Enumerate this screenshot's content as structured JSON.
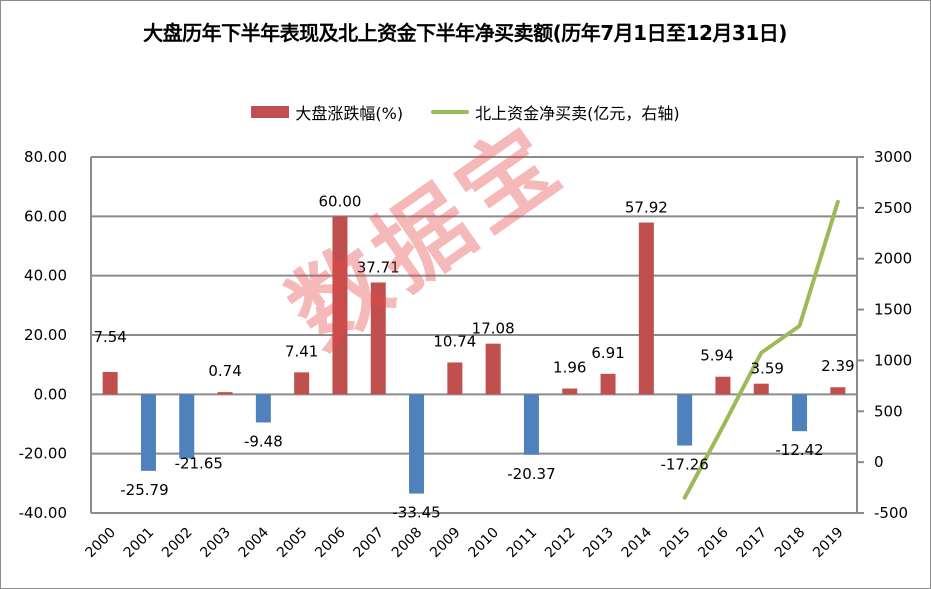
{
  "title": "大盘历年下半年表现及北上资金下半年净买卖额(历年7月1日至12月31日)",
  "watermark": "数据宝",
  "colors": {
    "positive_bar": "#C0504D",
    "negative_bar": "#4F81BD",
    "line": "#9BBB59",
    "grid": "#8c8c8c"
  },
  "legend": {
    "bar_label": "大盘涨跌幅(%)",
    "line_label": "北上资金净买卖(亿元，右轴)"
  },
  "chart_data": {
    "type": "bar+line",
    "title": "大盘历年下半年表现及北上资金下半年净买卖额(历年7月1日至12月31日)",
    "categories": [
      "2000",
      "2001",
      "2002",
      "2003",
      "2004",
      "2005",
      "2006",
      "2007",
      "2008",
      "2009",
      "2010",
      "2011",
      "2012",
      "2013",
      "2014",
      "2015",
      "2016",
      "2017",
      "2018",
      "2019"
    ],
    "series": [
      {
        "name": "大盘涨跌幅(%)",
        "type": "bar",
        "axis": "left",
        "values": [
          7.54,
          -25.79,
          -21.65,
          0.74,
          -9.48,
          7.41,
          60.0,
          37.71,
          -33.45,
          10.74,
          17.08,
          -20.37,
          1.96,
          6.91,
          57.92,
          -17.26,
          5.94,
          3.59,
          -12.42,
          2.39
        ],
        "labels": [
          "7.54",
          "-25.79",
          "-21.65",
          "0.74",
          "-9.48",
          "7.41",
          "60.00",
          "37.71",
          "-33.45",
          "10.74",
          "17.08",
          "-20.37",
          "1.96",
          "6.91",
          "57.92",
          "-17.26",
          "5.94",
          "3.59",
          "-12.42",
          "2.39"
        ]
      },
      {
        "name": "北上资金净买卖(亿元，右轴)",
        "type": "line",
        "axis": "right",
        "values": [
          null,
          null,
          null,
          null,
          null,
          null,
          null,
          null,
          null,
          null,
          null,
          null,
          null,
          null,
          null,
          -350,
          350,
          1075,
          1340,
          2560
        ]
      }
    ],
    "left_axis": {
      "ylim": [
        -40,
        80
      ],
      "ticks": [
        "80.00",
        "60.00",
        "40.00",
        "20.00",
        "0.00",
        "-20.00",
        "-40.00"
      ],
      "tick_values": [
        80,
        60,
        40,
        20,
        0,
        -20,
        -40
      ]
    },
    "right_axis": {
      "ylim": [
        -500,
        3000
      ],
      "ticks": [
        "3000",
        "2500",
        "2000",
        "1500",
        "1000",
        "500",
        "0",
        "-500"
      ],
      "tick_values": [
        3000,
        2500,
        2000,
        1500,
        1000,
        500,
        0,
        -500
      ]
    },
    "grid": true,
    "legend_position": "top"
  }
}
